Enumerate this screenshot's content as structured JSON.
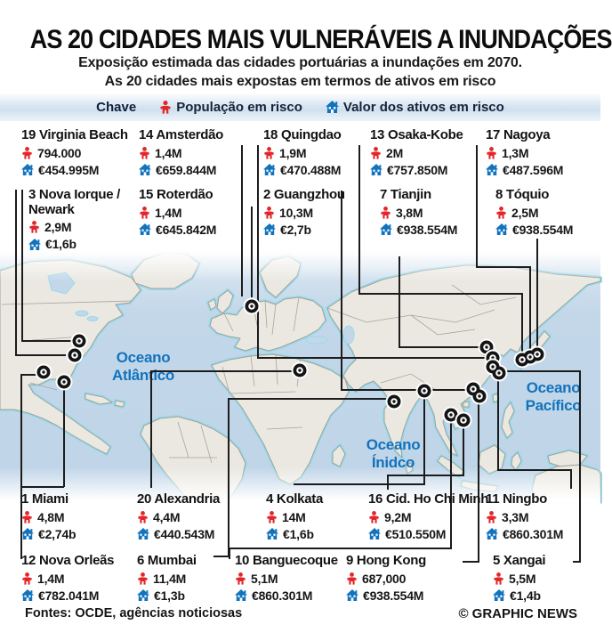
{
  "header": {
    "title": "AS 20 CIDADES MAIS VULNERÁVEIS A INUNDAÇÕES",
    "subtitle_line1": "Exposição estimada das cidades portuárias a inundações em 2070.",
    "subtitle_line2": "As 20 cidades mais expostas em termos de ativos em risco"
  },
  "legend": {
    "label": "Chave",
    "population_label": "População em risco",
    "assets_label": "Valor dos ativos em risco"
  },
  "colors": {
    "population_red": "#e32528",
    "assets_blue": "#1273bd",
    "ocean_label_blue": "#1273bd",
    "sea": "#c3d7e9",
    "land": "#eae8e1",
    "coastline": "#96dbee"
  },
  "map": {
    "ocean_atlantic": "Oceano\nAtlântico",
    "ocean_indian": "Oceano\nÍnidco",
    "ocean_pacific": "Oceano\nPacífico"
  },
  "cities": [
    {
      "label": "19 Virginia Beach",
      "population": "794.000",
      "assets": "€454.995M"
    },
    {
      "label": "14 Amsterdão",
      "population": "1,4M",
      "assets": "€659.844M"
    },
    {
      "label": "18 Quingdao",
      "population": "1,9M",
      "assets": "€470.488M"
    },
    {
      "label": "13 Osaka-Kobe",
      "population": "2M",
      "assets": "€757.850M"
    },
    {
      "label": "17 Nagoya",
      "population": "1,3M",
      "assets": "€487.596M"
    },
    {
      "label": "3 Nova Iorque / Newark",
      "population": "2,9M",
      "assets": "€1,6b"
    },
    {
      "label": "15 Roterdão",
      "population": "1,4M",
      "assets": "€645.842M"
    },
    {
      "label": "2 Guangzhou",
      "population": "10,3M",
      "assets": "€2,7b"
    },
    {
      "label": "7 Tianjin",
      "population": "3,8M",
      "assets": "€938.554M"
    },
    {
      "label": "8 Tóquio",
      "population": "2,5M",
      "assets": "€938.554M"
    },
    {
      "label": "1 Miami",
      "population": "4,8M",
      "assets": "€2,74b"
    },
    {
      "label": "20 Alexandria",
      "population": "4,4M",
      "assets": "€440.543M"
    },
    {
      "label": "4 Kolkata",
      "population": "14M",
      "assets": "€1,6b"
    },
    {
      "label": "16 Cid. Ho Chi Minh",
      "population": "9,2M",
      "assets": "€510.550M"
    },
    {
      "label": "11 Ningbo",
      "population": "3,3M",
      "assets": "€860.301M"
    },
    {
      "label": "12 Nova Orleãs",
      "population": "1,4M",
      "assets": "€782.041M"
    },
    {
      "label": "6 Mumbai",
      "population": "11,4M",
      "assets": "€1,3b"
    },
    {
      "label": "10 Banguecoque",
      "population": "5,1M",
      "assets": "€860.301M"
    },
    {
      "label": "9 Hong Kong",
      "population": "687,000",
      "assets": "€938.554M"
    },
    {
      "label": "5 Xangai",
      "population": "5,5M",
      "assets": "€1,4b"
    }
  ],
  "footer": {
    "sources": "Fontes: OCDE, agências noticiosas",
    "credit": "© GRAPHIC NEWS"
  }
}
